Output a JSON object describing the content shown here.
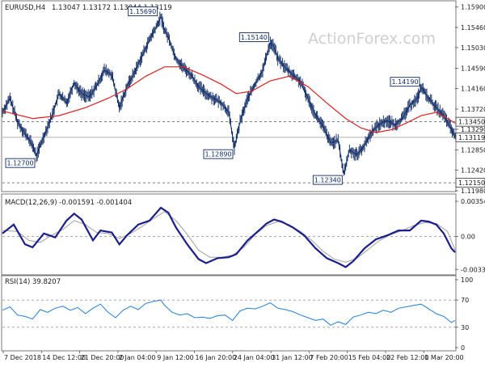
{
  "chart_data": {
    "type": "line",
    "symbol": "EURUSD,H4",
    "header_ohlc": "1.13047 1.13172 1.13044 1.13119",
    "watermark": "ActionForex.com",
    "x_tick_labels": [
      "7 Dec 2018",
      "14 Dec 12:00",
      "21 Dec 20:00",
      "2 Jan 04:00",
      "9 Jan 12:00",
      "16 Jan 20:00",
      "24 Jan 04:00",
      "31 Jan 12:00",
      "7 Feb 20:00",
      "15 Feb 04:00",
      "22 Feb 12:00",
      "1 Mar 20:00"
    ],
    "price_panel": {
      "y_axis_ticks": [
        "1.15900",
        "1.15460",
        "1.15030",
        "1.14590",
        "1.14160",
        "1.13720",
        "1.13290",
        "1.12850",
        "1.12420",
        "1.11980"
      ],
      "ylim": [
        1.1198,
        1.1601
      ],
      "close_label": "1.13119",
      "close_value": 1.13119,
      "level_labels": [
        {
          "label": "1.13450",
          "value": 1.1345,
          "style": "dashed"
        },
        {
          "label": "1.12150",
          "value": 1.1215,
          "style": "dashed"
        }
      ],
      "annotations": [
        {
          "label": "1.12700",
          "x": 18,
          "value": 1.127,
          "side": "below"
        },
        {
          "label": "1.15690",
          "x": 83,
          "value": 1.1569,
          "side": "above"
        },
        {
          "label": "1.12890",
          "x": 123,
          "value": 1.1289,
          "side": "below"
        },
        {
          "label": "1.15140",
          "x": 142,
          "value": 1.1514,
          "side": "above"
        },
        {
          "label": "1.12340",
          "x": 181,
          "value": 1.1234,
          "side": "below"
        },
        {
          "label": "1.14190",
          "x": 222,
          "value": 1.1419,
          "side": "above"
        }
      ],
      "price_series": [
        [
          0,
          1.1365
        ],
        [
          4,
          1.1395
        ],
        [
          8,
          1.1345
        ],
        [
          12,
          1.132
        ],
        [
          16,
          1.1295
        ],
        [
          18,
          1.1272
        ],
        [
          22,
          1.1315
        ],
        [
          26,
          1.1355
        ],
        [
          30,
          1.1405
        ],
        [
          34,
          1.1385
        ],
        [
          38,
          1.1428
        ],
        [
          42,
          1.1405
        ],
        [
          46,
          1.1398
        ],
        [
          50,
          1.1422
        ],
        [
          54,
          1.1455
        ],
        [
          58,
          1.1445
        ],
        [
          62,
          1.1375
        ],
        [
          66,
          1.142
        ],
        [
          70,
          1.145
        ],
        [
          74,
          1.1485
        ],
        [
          78,
          1.152
        ],
        [
          82,
          1.155
        ],
        [
          84,
          1.1569
        ],
        [
          86,
          1.154
        ],
        [
          88,
          1.1525
        ],
        [
          92,
          1.148
        ],
        [
          96,
          1.146
        ],
        [
          100,
          1.1445
        ],
        [
          104,
          1.142
        ],
        [
          108,
          1.1405
        ],
        [
          112,
          1.1395
        ],
        [
          116,
          1.1385
        ],
        [
          120,
          1.1365
        ],
        [
          123,
          1.1289
        ],
        [
          126,
          1.1345
        ],
        [
          130,
          1.1395
        ],
        [
          134,
          1.1425
        ],
        [
          138,
          1.1455
        ],
        [
          142,
          1.1514
        ],
        [
          144,
          1.1505
        ],
        [
          146,
          1.148
        ],
        [
          150,
          1.146
        ],
        [
          154,
          1.1445
        ],
        [
          158,
          1.143
        ],
        [
          162,
          1.1395
        ],
        [
          166,
          1.136
        ],
        [
          170,
          1.1335
        ],
        [
          174,
          1.13
        ],
        [
          178,
          1.1305
        ],
        [
          181,
          1.1234
        ],
        [
          184,
          1.1285
        ],
        [
          188,
          1.1275
        ],
        [
          192,
          1.1295
        ],
        [
          196,
          1.1325
        ],
        [
          200,
          1.134
        ],
        [
          204,
          1.1348
        ],
        [
          208,
          1.1338
        ],
        [
          212,
          1.1352
        ],
        [
          216,
          1.138
        ],
        [
          220,
          1.1395
        ],
        [
          222,
          1.1419
        ],
        [
          226,
          1.1395
        ],
        [
          230,
          1.1375
        ],
        [
          234,
          1.1358
        ],
        [
          238,
          1.133
        ],
        [
          240,
          1.1312
        ]
      ],
      "moving_average": [
        [
          0,
          1.1368
        ],
        [
          16,
          1.1352
        ],
        [
          30,
          1.1358
        ],
        [
          44,
          1.1375
        ],
        [
          56,
          1.1395
        ],
        [
          66,
          1.1415
        ],
        [
          76,
          1.1442
        ],
        [
          86,
          1.1462
        ],
        [
          96,
          1.1462
        ],
        [
          106,
          1.1445
        ],
        [
          116,
          1.1425
        ],
        [
          124,
          1.1405
        ],
        [
          132,
          1.141
        ],
        [
          142,
          1.1432
        ],
        [
          152,
          1.1442
        ],
        [
          162,
          1.142
        ],
        [
          172,
          1.1385
        ],
        [
          182,
          1.1352
        ],
        [
          190,
          1.1332
        ],
        [
          198,
          1.1322
        ],
        [
          206,
          1.1328
        ],
        [
          214,
          1.1342
        ],
        [
          222,
          1.1358
        ],
        [
          230,
          1.1365
        ],
        [
          236,
          1.1352
        ],
        [
          240,
          1.1342
        ]
      ]
    },
    "macd_panel": {
      "label": "MACD(12,26,9) -0.001591 -0.001404",
      "y_axis_ticks": [
        "0.003544",
        "0.00",
        "-0.003331"
      ],
      "ylim": [
        -0.0038,
        0.0042
      ],
      "main_series": [
        [
          0,
          0.0003
        ],
        [
          6,
          0.0012
        ],
        [
          12,
          -0.0008
        ],
        [
          16,
          -0.0011
        ],
        [
          22,
          0.0003
        ],
        [
          28,
          -0.0001
        ],
        [
          34,
          0.0016
        ],
        [
          38,
          0.0023
        ],
        [
          42,
          0.0017
        ],
        [
          48,
          -0.0004
        ],
        [
          52,
          0.0006
        ],
        [
          58,
          0.0004
        ],
        [
          62,
          -0.0008
        ],
        [
          66,
          0.0001
        ],
        [
          72,
          0.0012
        ],
        [
          78,
          0.0016
        ],
        [
          84,
          0.0029
        ],
        [
          88,
          0.0024
        ],
        [
          92,
          0.0009
        ],
        [
          98,
          -0.0008
        ],
        [
          104,
          -0.0023
        ],
        [
          108,
          -0.0027
        ],
        [
          114,
          -0.0022
        ],
        [
          120,
          -0.0021
        ],
        [
          124,
          -0.0018
        ],
        [
          130,
          -0.0004
        ],
        [
          136,
          0.0006
        ],
        [
          140,
          0.0013
        ],
        [
          144,
          0.0017
        ],
        [
          148,
          0.0015
        ],
        [
          154,
          0.0009
        ],
        [
          160,
          0.0001
        ],
        [
          166,
          -0.0012
        ],
        [
          172,
          -0.0022
        ],
        [
          178,
          -0.0027
        ],
        [
          182,
          -0.0031
        ],
        [
          186,
          -0.0025
        ],
        [
          192,
          -0.0012
        ],
        [
          198,
          -0.0003
        ],
        [
          204,
          0.0001
        ],
        [
          210,
          0.0006
        ],
        [
          216,
          0.0006
        ],
        [
          222,
          0.0016
        ],
        [
          226,
          0.0015
        ],
        [
          230,
          0.0012
        ],
        [
          234,
          0.0003
        ],
        [
          238,
          -0.0012
        ],
        [
          240,
          -0.0016
        ]
      ],
      "signal_series": [
        [
          0,
          0.0006
        ],
        [
          8,
          0.0005
        ],
        [
          14,
          -0.0004
        ],
        [
          20,
          -0.0006
        ],
        [
          26,
          0.0001
        ],
        [
          32,
          0.0007
        ],
        [
          38,
          0.0016
        ],
        [
          44,
          0.0012
        ],
        [
          50,
          0.0004
        ],
        [
          56,
          0.0003
        ],
        [
          62,
          -0.0002
        ],
        [
          68,
          0.0003
        ],
        [
          74,
          0.001
        ],
        [
          80,
          0.0018
        ],
        [
          86,
          0.0025
        ],
        [
          92,
          0.0016
        ],
        [
          98,
          0.0002
        ],
        [
          104,
          -0.0014
        ],
        [
          110,
          -0.0021
        ],
        [
          116,
          -0.0021
        ],
        [
          122,
          -0.0019
        ],
        [
          128,
          -0.0011
        ],
        [
          134,
          0.0002
        ],
        [
          140,
          0.0011
        ],
        [
          146,
          0.0015
        ],
        [
          152,
          0.0012
        ],
        [
          158,
          0.0005
        ],
        [
          164,
          -0.0004
        ],
        [
          170,
          -0.0015
        ],
        [
          176,
          -0.0023
        ],
        [
          182,
          -0.0026
        ],
        [
          188,
          -0.0022
        ],
        [
          194,
          -0.0013
        ],
        [
          200,
          -0.0004
        ],
        [
          206,
          0.0002
        ],
        [
          212,
          0.0006
        ],
        [
          218,
          0.0011
        ],
        [
          224,
          0.0014
        ],
        [
          230,
          0.0013
        ],
        [
          236,
          0.0005
        ],
        [
          240,
          -0.0014
        ]
      ]
    },
    "rsi_panel": {
      "label": "RSI(14) 39.8207",
      "y_axis_ticks": [
        "100",
        "70",
        "30",
        "0"
      ],
      "levels": [
        70,
        30
      ],
      "ylim": [
        0,
        100
      ],
      "series": [
        [
          0,
          55
        ],
        [
          4,
          60
        ],
        [
          8,
          48
        ],
        [
          12,
          46
        ],
        [
          16,
          42
        ],
        [
          20,
          56
        ],
        [
          24,
          52
        ],
        [
          28,
          58
        ],
        [
          32,
          61
        ],
        [
          36,
          55
        ],
        [
          40,
          59
        ],
        [
          44,
          50
        ],
        [
          48,
          58
        ],
        [
          52,
          64
        ],
        [
          56,
          52
        ],
        [
          60,
          44
        ],
        [
          64,
          55
        ],
        [
          68,
          61
        ],
        [
          72,
          56
        ],
        [
          76,
          65
        ],
        [
          80,
          68
        ],
        [
          84,
          70
        ],
        [
          86,
          62
        ],
        [
          90,
          52
        ],
        [
          94,
          48
        ],
        [
          98,
          50
        ],
        [
          102,
          44
        ],
        [
          106,
          45
        ],
        [
          110,
          43
        ],
        [
          114,
          47
        ],
        [
          118,
          48
        ],
        [
          122,
          40
        ],
        [
          126,
          54
        ],
        [
          130,
          58
        ],
        [
          134,
          57
        ],
        [
          138,
          61
        ],
        [
          142,
          66
        ],
        [
          146,
          58
        ],
        [
          150,
          56
        ],
        [
          154,
          53
        ],
        [
          158,
          48
        ],
        [
          162,
          44
        ],
        [
          166,
          40
        ],
        [
          170,
          42
        ],
        [
          174,
          33
        ],
        [
          178,
          38
        ],
        [
          182,
          34
        ],
        [
          186,
          45
        ],
        [
          190,
          48
        ],
        [
          194,
          52
        ],
        [
          198,
          50
        ],
        [
          202,
          55
        ],
        [
          206,
          52
        ],
        [
          210,
          58
        ],
        [
          214,
          60
        ],
        [
          218,
          62
        ],
        [
          222,
          64
        ],
        [
          226,
          57
        ],
        [
          230,
          50
        ],
        [
          234,
          46
        ],
        [
          238,
          37
        ],
        [
          240,
          40
        ]
      ]
    }
  }
}
